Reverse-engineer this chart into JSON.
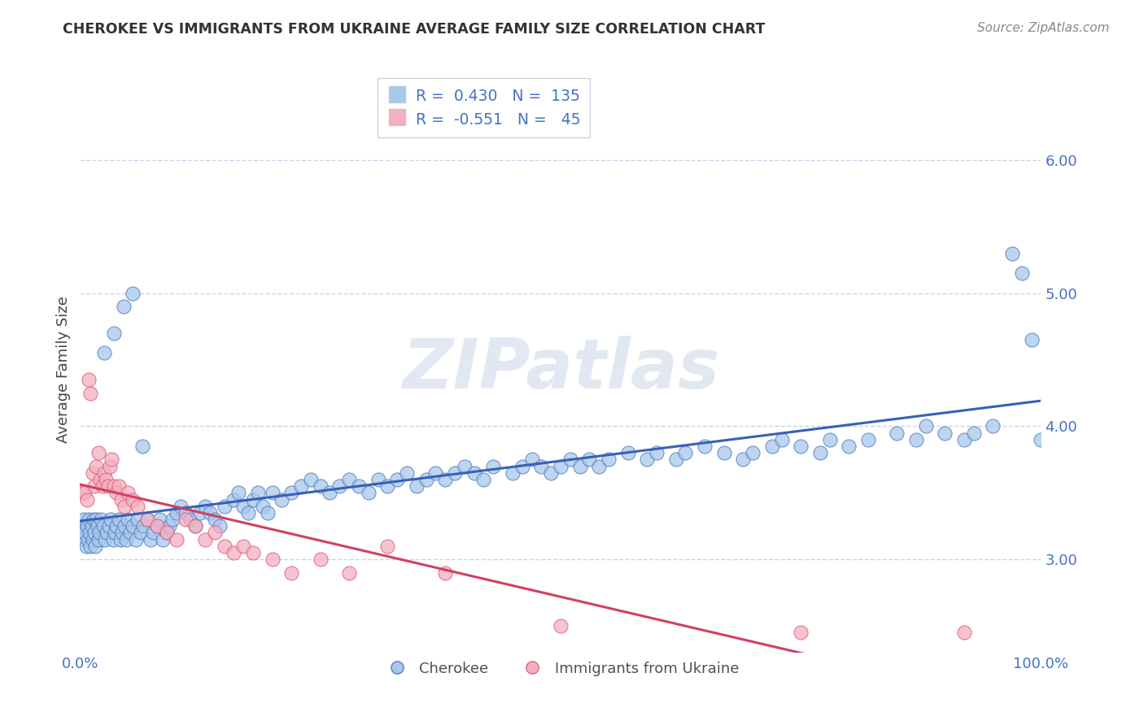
{
  "title": "CHEROKEE VS IMMIGRANTS FROM UKRAINE AVERAGE FAMILY SIZE CORRELATION CHART",
  "source": "Source: ZipAtlas.com",
  "ylabel": "Average Family Size",
  "legend_labels": [
    "Cherokee",
    "Immigrants from Ukraine"
  ],
  "cherokee_R": "0.430",
  "cherokee_N": "135",
  "ukraine_R": "-0.551",
  "ukraine_N": "45",
  "cherokee_scatter_color": "#a8c8ec",
  "cherokee_edge_color": "#5580c0",
  "ukraine_scatter_color": "#f4b0c0",
  "ukraine_edge_color": "#e06080",
  "cherokee_line_color": "#3860b8",
  "ukraine_line_color": "#d04060",
  "title_color": "#333333",
  "source_color": "#888888",
  "ylabel_color": "#444444",
  "axis_value_color": "#4472c4",
  "label_dark_color": "#333333",
  "background_color": "#ffffff",
  "grid_color": "#c8d4e8",
  "ytick_values": [
    3.0,
    4.0,
    5.0,
    6.0
  ],
  "ylim": [
    2.3,
    6.55
  ],
  "xlim": [
    0.0,
    1.0
  ],
  "cherokee_x": [
    0.002,
    0.003,
    0.004,
    0.005,
    0.006,
    0.007,
    0.008,
    0.009,
    0.01,
    0.011,
    0.012,
    0.013,
    0.014,
    0.015,
    0.016,
    0.017,
    0.018,
    0.019,
    0.02,
    0.022,
    0.024,
    0.026,
    0.028,
    0.03,
    0.032,
    0.034,
    0.036,
    0.038,
    0.04,
    0.042,
    0.044,
    0.046,
    0.048,
    0.05,
    0.052,
    0.055,
    0.058,
    0.06,
    0.063,
    0.066,
    0.07,
    0.073,
    0.076,
    0.08,
    0.083,
    0.086,
    0.09,
    0.093,
    0.096,
    0.1,
    0.105,
    0.11,
    0.115,
    0.12,
    0.125,
    0.13,
    0.135,
    0.14,
    0.145,
    0.15,
    0.16,
    0.165,
    0.17,
    0.175,
    0.18,
    0.185,
    0.19,
    0.195,
    0.2,
    0.21,
    0.22,
    0.23,
    0.24,
    0.25,
    0.26,
    0.27,
    0.28,
    0.29,
    0.3,
    0.31,
    0.32,
    0.33,
    0.34,
    0.35,
    0.36,
    0.37,
    0.38,
    0.39,
    0.4,
    0.41,
    0.42,
    0.43,
    0.45,
    0.46,
    0.47,
    0.48,
    0.49,
    0.5,
    0.51,
    0.52,
    0.53,
    0.54,
    0.55,
    0.57,
    0.59,
    0.6,
    0.62,
    0.63,
    0.65,
    0.67,
    0.69,
    0.7,
    0.72,
    0.73,
    0.75,
    0.77,
    0.78,
    0.8,
    0.82,
    0.85,
    0.87,
    0.88,
    0.9,
    0.92,
    0.93,
    0.95,
    0.97,
    0.98,
    0.99,
    1.0,
    0.025,
    0.035,
    0.045,
    0.055,
    0.065
  ],
  "cherokee_y": [
    3.25,
    3.15,
    3.3,
    3.2,
    3.1,
    3.25,
    3.15,
    3.3,
    3.2,
    3.1,
    3.25,
    3.15,
    3.3,
    3.2,
    3.1,
    3.3,
    3.25,
    3.15,
    3.2,
    3.3,
    3.25,
    3.15,
    3.2,
    3.25,
    3.3,
    3.15,
    3.2,
    3.25,
    3.3,
    3.15,
    3.2,
    3.25,
    3.15,
    3.3,
    3.2,
    3.25,
    3.15,
    3.3,
    3.2,
    3.25,
    3.3,
    3.15,
    3.2,
    3.25,
    3.3,
    3.15,
    3.2,
    3.25,
    3.3,
    3.35,
    3.4,
    3.35,
    3.3,
    3.25,
    3.35,
    3.4,
    3.35,
    3.3,
    3.25,
    3.4,
    3.45,
    3.5,
    3.4,
    3.35,
    3.45,
    3.5,
    3.4,
    3.35,
    3.5,
    3.45,
    3.5,
    3.55,
    3.6,
    3.55,
    3.5,
    3.55,
    3.6,
    3.55,
    3.5,
    3.6,
    3.55,
    3.6,
    3.65,
    3.55,
    3.6,
    3.65,
    3.6,
    3.65,
    3.7,
    3.65,
    3.6,
    3.7,
    3.65,
    3.7,
    3.75,
    3.7,
    3.65,
    3.7,
    3.75,
    3.7,
    3.75,
    3.7,
    3.75,
    3.8,
    3.75,
    3.8,
    3.75,
    3.8,
    3.85,
    3.8,
    3.75,
    3.8,
    3.85,
    3.9,
    3.85,
    3.8,
    3.9,
    3.85,
    3.9,
    3.95,
    3.9,
    4.0,
    3.95,
    3.9,
    3.95,
    4.0,
    5.3,
    5.15,
    4.65,
    3.9,
    4.55,
    4.7,
    4.9,
    5.0,
    3.85
  ],
  "ukraine_x": [
    0.003,
    0.005,
    0.007,
    0.009,
    0.011,
    0.013,
    0.015,
    0.017,
    0.019,
    0.021,
    0.023,
    0.025,
    0.027,
    0.029,
    0.031,
    0.033,
    0.035,
    0.038,
    0.04,
    0.043,
    0.046,
    0.05,
    0.055,
    0.06,
    0.07,
    0.08,
    0.09,
    0.1,
    0.11,
    0.12,
    0.13,
    0.14,
    0.15,
    0.16,
    0.17,
    0.18,
    0.2,
    0.22,
    0.25,
    0.28,
    0.32,
    0.38,
    0.5,
    0.75,
    0.92
  ],
  "ukraine_y": [
    3.5,
    3.5,
    3.45,
    4.35,
    4.25,
    3.65,
    3.55,
    3.7,
    3.8,
    3.6,
    3.55,
    3.65,
    3.6,
    3.55,
    3.7,
    3.75,
    3.55,
    3.5,
    3.55,
    3.45,
    3.4,
    3.5,
    3.45,
    3.4,
    3.3,
    3.25,
    3.2,
    3.15,
    3.3,
    3.25,
    3.15,
    3.2,
    3.1,
    3.05,
    3.1,
    3.05,
    3.0,
    2.9,
    3.0,
    2.9,
    3.1,
    2.9,
    2.5,
    2.45,
    2.45
  ]
}
